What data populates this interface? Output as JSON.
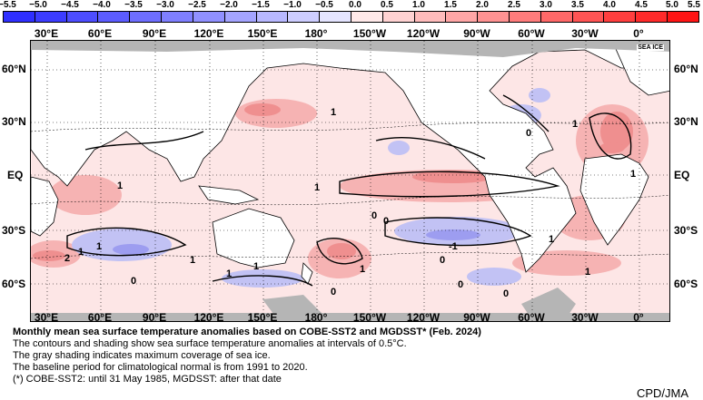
{
  "legend": {
    "tick_labels": [
      "−5.5",
      "−5.0",
      "−4.5",
      "−4.0",
      "−3.5",
      "−3.0",
      "−2.5",
      "−2.0",
      "−1.5",
      "−1.0",
      "−0.5",
      "0.0",
      "0.5",
      "1.0",
      "1.5",
      "2.0",
      "2.5",
      "3.0",
      "3.5",
      "4.0",
      "4.5",
      "5.0",
      "5.5"
    ],
    "colors": [
      "#2f2fff",
      "#3c3cff",
      "#4d4dff",
      "#5c5cff",
      "#6e6eff",
      "#7f7fff",
      "#9090ff",
      "#a4a4ff",
      "#b8b8ff",
      "#cdcdff",
      "#e4e4ff",
      "#ffe9e9",
      "#ffd2d2",
      "#ffbcbc",
      "#ffa6a6",
      "#ff9292",
      "#ff7c7c",
      "#ff6868",
      "#ff5454",
      "#ff3e3e",
      "#ff2a2a",
      "#ff1414"
    ]
  },
  "axes": {
    "lon_labels": [
      "30°E",
      "60°E",
      "90°E",
      "120°E",
      "150°E",
      "180°",
      "150°W",
      "120°W",
      "90°W",
      "60°W",
      "30°W",
      "0°"
    ],
    "lat_labels": [
      "60°N",
      "30°N",
      "EQ",
      "30°S",
      "60°S"
    ]
  },
  "map": {
    "sea_ice_label": "SEA ICE",
    "contour_labels": [
      "1",
      "1",
      "1",
      "1",
      "0",
      "0",
      "1",
      "1",
      "2",
      "1",
      "1",
      "0",
      "0",
      "0",
      "-1",
      "1",
      "1",
      "1",
      "1",
      "0",
      "0",
      "0",
      "1"
    ]
  },
  "caption": {
    "title": "Monthly mean sea surface temperature anomalies based on COBE-SST2 and MGDSST* (Feb. 2024)",
    "lines": [
      "The contours and shading show sea surface temperature anomalies at intervals of 0.5°C.",
      "The gray shading indicates maximum coverage of sea ice.",
      "The baseline period for climatological normal is from 1991 to 2020.",
      "(*) COBE-SST2: until 31 May 1985, MGDSST: after that date"
    ]
  },
  "credit": "CPD/JMA",
  "colors": {
    "land": "#ffffff",
    "sea_ice": "#b5b5b5",
    "warm": "#f2a6a6",
    "cool": "#a8a8f0"
  }
}
